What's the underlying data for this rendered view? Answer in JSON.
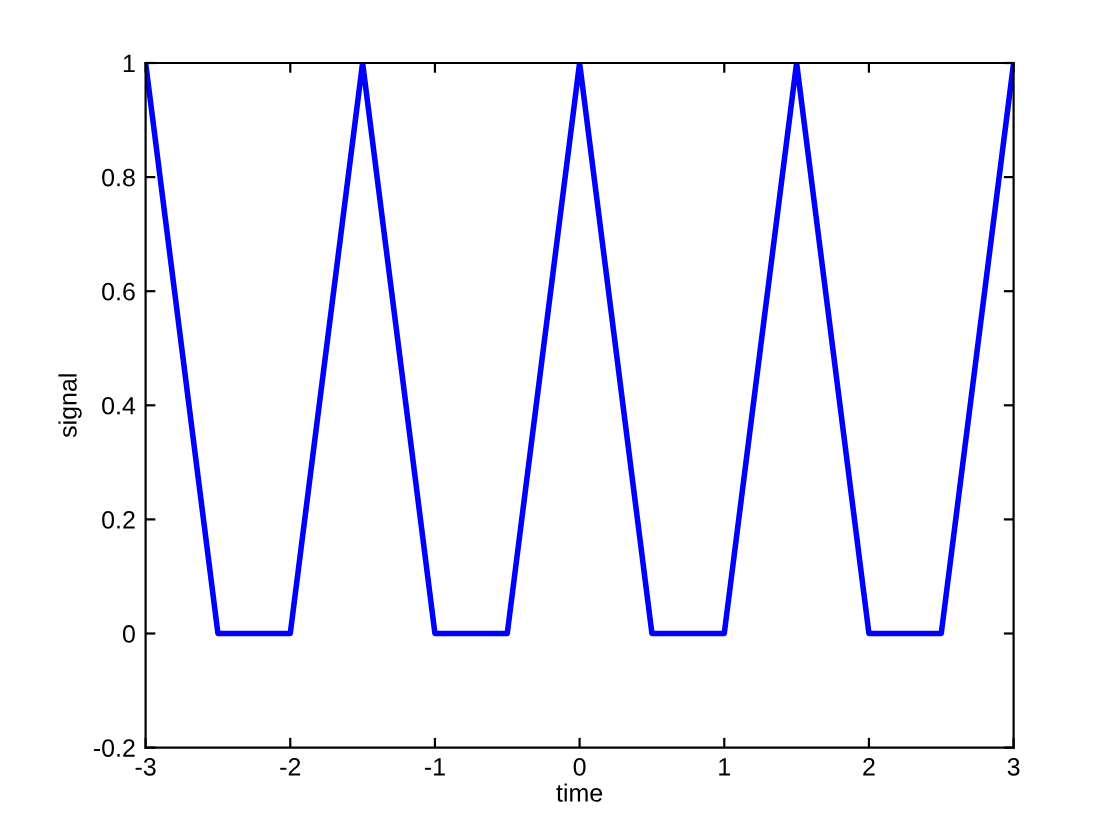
{
  "chart_data": {
    "type": "line",
    "xlabel": "time",
    "ylabel": "signal",
    "x": [
      -3,
      -2.5,
      -2,
      -1.5,
      -1,
      -0.5,
      0,
      0.5,
      1,
      1.5,
      2,
      2.5,
      3
    ],
    "series": [
      {
        "color": "#0000ff",
        "values": [
          1,
          0,
          0,
          1,
          0,
          0,
          1,
          0,
          0,
          1,
          0,
          0,
          1
        ]
      }
    ],
    "xlim": [
      -3,
      3
    ],
    "ylim": [
      -0.2,
      1
    ],
    "xticks": [
      -3,
      -2,
      -1,
      0,
      1,
      2,
      3
    ],
    "yticks": [
      -0.2,
      0,
      0.2,
      0.4,
      0.6,
      0.8,
      1
    ],
    "grid": false,
    "legend": false,
    "marker": "none",
    "line_style": "solid"
  }
}
